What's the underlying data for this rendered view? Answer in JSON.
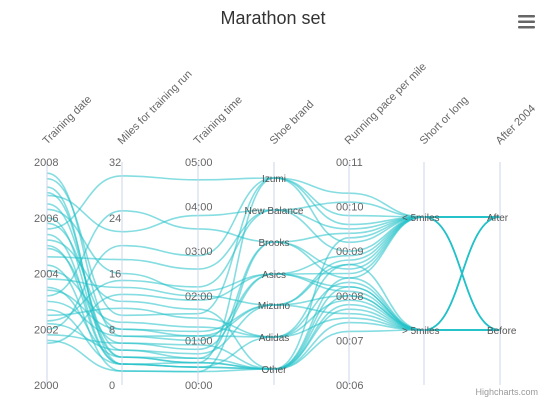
{
  "chart_data": {
    "type": "line",
    "subtype": "parallel-coordinates",
    "title": "Marathon set",
    "series_color": "#20c1c9",
    "axes": [
      {
        "key": "training_date",
        "title": "Training date",
        "type": "linear",
        "ticks": [
          "2000",
          "2002",
          "2004",
          "2006",
          "2008"
        ],
        "range": [
          2000,
          2008
        ]
      },
      {
        "key": "miles",
        "title": "Miles for training run",
        "type": "linear",
        "ticks": [
          "0",
          "8",
          "16",
          "24",
          "32"
        ],
        "range": [
          0,
          32
        ]
      },
      {
        "key": "training_time",
        "title": "Training time",
        "type": "linear",
        "ticks": [
          "00:00",
          "01:00",
          "02:00",
          "03:00",
          "04:00",
          "05:00"
        ],
        "range": [
          0,
          5
        ]
      },
      {
        "key": "shoe_brand",
        "title": "Shoe brand",
        "type": "category",
        "categories": [
          "Other",
          "Adidas",
          "Mizuno",
          "Asics",
          "Brooks",
          "New Balance",
          "Izumi"
        ]
      },
      {
        "key": "pace",
        "title": "Running pace per mile",
        "type": "linear",
        "ticks": [
          "00:06",
          "00:07",
          "00:08",
          "00:09",
          "00:10",
          "00:11"
        ],
        "range": [
          6,
          11
        ]
      },
      {
        "key": "short_or_long",
        "title": "Short or long",
        "type": "category",
        "categories": [
          "> 5miles",
          "< 5miles"
        ]
      },
      {
        "key": "after_2004",
        "title": "After 2004",
        "type": "category",
        "categories": [
          "Before",
          "After"
        ]
      }
    ],
    "sample_runs": [
      [
        2007.4,
        10,
        1.6,
        6,
        9.6,
        1,
        1
      ],
      [
        2007.1,
        3,
        0.4,
        0,
        9.3,
        1,
        1
      ],
      [
        2006.8,
        22,
        3.8,
        5,
        10.1,
        1,
        1
      ],
      [
        2006.5,
        5,
        0.6,
        4,
        8.6,
        1,
        1
      ],
      [
        2006.3,
        16,
        2.1,
        3,
        8.9,
        1,
        1
      ],
      [
        2006.0,
        4,
        0.5,
        0,
        8.4,
        0,
        1
      ],
      [
        2005.8,
        8,
        1.2,
        2,
        8.0,
        0,
        1
      ],
      [
        2005.6,
        30,
        4.6,
        6,
        9.8,
        1,
        1
      ],
      [
        2005.4,
        3,
        0.4,
        1,
        7.9,
        0,
        1
      ],
      [
        2005.2,
        12,
        1.7,
        0,
        8.2,
        0,
        1
      ],
      [
        2004.9,
        6,
        0.8,
        3,
        8.5,
        1,
        1
      ],
      [
        2004.6,
        18,
        2.6,
        5,
        9.0,
        1,
        1
      ],
      [
        2004.3,
        2,
        0.3,
        0,
        7.7,
        0,
        0
      ],
      [
        2004.1,
        9,
        1.3,
        1,
        8.3,
        0,
        0
      ],
      [
        2003.8,
        14,
        2.0,
        2,
        8.8,
        1,
        0
      ],
      [
        2003.5,
        4,
        0.6,
        0,
        8.0,
        0,
        0
      ],
      [
        2003.2,
        25,
        3.5,
        4,
        9.4,
        1,
        0
      ],
      [
        2003.0,
        7,
        1.0,
        3,
        8.1,
        0,
        0
      ],
      [
        2002.7,
        3,
        0.5,
        0,
        7.4,
        0,
        0
      ],
      [
        2002.5,
        11,
        1.5,
        1,
        8.7,
        1,
        0
      ],
      [
        2002.2,
        5,
        0.7,
        2,
        7.6,
        0,
        0
      ],
      [
        2002.0,
        20,
        2.9,
        6,
        9.2,
        1,
        0
      ],
      [
        2001.8,
        6,
        0.9,
        0,
        7.2,
        0,
        0
      ],
      [
        2001.6,
        2,
        0.3,
        4,
        8.4,
        1,
        0
      ],
      [
        2001.5,
        13,
        1.9,
        3,
        8.2,
        0,
        0
      ],
      [
        2002.3,
        15,
        2.2,
        5,
        9.5,
        1,
        0
      ],
      [
        2006.9,
        4,
        0.5,
        6,
        10.3,
        1,
        1
      ],
      [
        2007.6,
        7,
        1.1,
        2,
        8.7,
        0,
        1
      ],
      [
        2005.0,
        3,
        0.4,
        0,
        7.8,
        0,
        1
      ],
      [
        2003.4,
        8,
        1.1,
        1,
        7.5,
        0,
        0
      ]
    ]
  },
  "menu_icon": "hamburger-menu-icon",
  "credits": "Highcharts.com"
}
